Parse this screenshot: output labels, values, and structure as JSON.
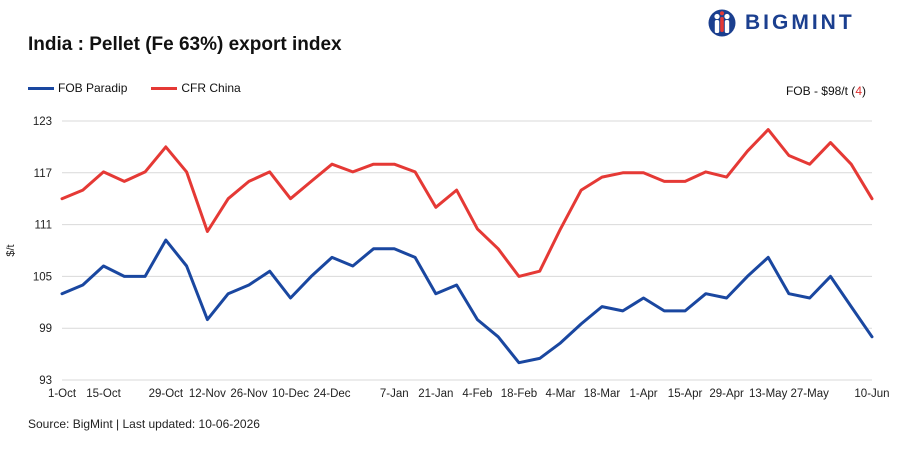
{
  "header": {
    "title": "India : Pellet (Fe 63%) export index",
    "logo_text": "BIGMINT"
  },
  "note": {
    "prefix": "FOB - $98/t (",
    "change": "4",
    "suffix": ")"
  },
  "footer": {
    "source": "Source: BigMint | Last updated: 10-06-2026"
  },
  "colors": {
    "fob": "#1a47a0",
    "cfr": "#e53935",
    "grid": "#d9d9d9",
    "logo": "#1b3f8f"
  },
  "chart_data": {
    "type": "line",
    "title": "India : Pellet (Fe 63%) export index",
    "ylabel": "$/t",
    "xlabel": "",
    "ylim": [
      93,
      123
    ],
    "yticks": [
      93,
      99,
      105,
      111,
      117,
      123
    ],
    "grid": true,
    "legend": "top-left",
    "x": [
      "1-Oct",
      "8-Oct",
      "15-Oct",
      "17-Oct",
      "22-Oct",
      "29-Oct",
      "5-Nov",
      "12-Nov",
      "19-Nov",
      "26-Nov",
      "3-Dec",
      "10-Dec",
      "17-Dec",
      "24-Dec",
      "26-Dec",
      "31-Dec",
      "7-Jan",
      "14-Jan",
      "21-Jan",
      "28-Jan",
      "4-Feb",
      "11-Feb",
      "18-Feb",
      "25-Feb",
      "4-Mar",
      "11-Mar",
      "18-Mar",
      "25-Mar",
      "1-Apr",
      "8-Apr",
      "15-Apr",
      "22-Apr",
      "29-Apr",
      "6-May",
      "13-May",
      "20-May",
      "27-May",
      "29-May",
      "3-Jun",
      "10-Jun"
    ],
    "xtick_labels": [
      "1-Oct",
      "15-Oct",
      "29-Oct",
      "12-Nov",
      "26-Nov",
      "10-Dec",
      "24-Dec",
      "7-Jan",
      "21-Jan",
      "4-Feb",
      "18-Feb",
      "4-Mar",
      "18-Mar",
      "1-Apr",
      "15-Apr",
      "29-Apr",
      "13-May",
      "27-May",
      "10-Jun"
    ],
    "series": [
      {
        "name": "FOB Paradip",
        "color": "#1a47a0",
        "values": [
          103,
          104,
          106.2,
          105,
          105,
          109.2,
          106.2,
          100,
          103,
          104,
          105.6,
          102.5,
          105,
          107.2,
          106.2,
          108.2,
          108.2,
          107.2,
          103,
          104,
          100,
          98,
          95,
          95.5,
          97.3,
          99.5,
          101.5,
          101,
          102.5,
          101,
          101,
          103,
          102.5,
          105,
          107.2,
          103,
          102.5,
          105,
          101.5,
          98
        ]
      },
      {
        "name": "CFR China",
        "color": "#e53935",
        "values": [
          114,
          115,
          117.1,
          116,
          117.1,
          120,
          117.1,
          110.2,
          114,
          116,
          117.1,
          114,
          116,
          118,
          117.1,
          118,
          118,
          117.1,
          113,
          115,
          110.5,
          108.2,
          105,
          105.6,
          110.5,
          115,
          116.5,
          117,
          117,
          116,
          116,
          117.1,
          116.5,
          119.5,
          122,
          119,
          118,
          120.5,
          118,
          114
        ]
      }
    ]
  }
}
